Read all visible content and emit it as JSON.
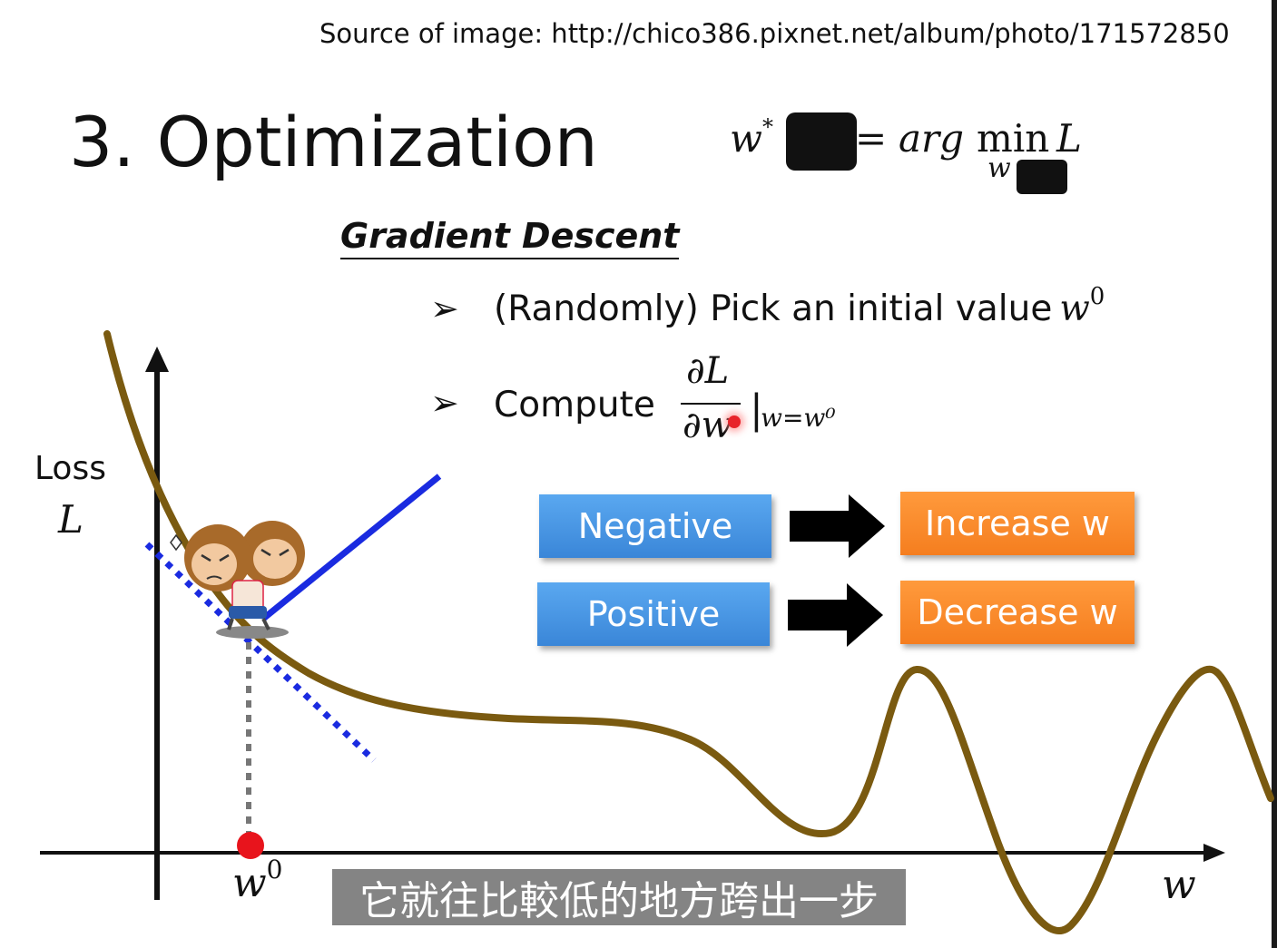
{
  "source": "Source of image: http://chico386.pixnet.net/album/photo/171572850",
  "title": "3. Optimization",
  "formula": {
    "w": "w",
    "star": "*",
    "equals": "=",
    "arg": "arg",
    "min": "min",
    "L": "L",
    "sub": "w"
  },
  "section_heading": "Gradient Descent",
  "bullets": {
    "b1_text": "(Randomly) Pick an initial value",
    "b1_var": "w",
    "b1_sup": "0",
    "b2_text": "Compute"
  },
  "derivative": {
    "numerator": "∂L",
    "denominator": "∂w",
    "bar": "|",
    "evaluation": "w=w⁰"
  },
  "rules": {
    "negative": "Negative",
    "positive": "Positive",
    "increase": "Increase w",
    "decrease": "Decrease w"
  },
  "axes": {
    "y_label_line1": "Loss",
    "y_label_line2": "L",
    "x_label": "w",
    "w0_var": "w",
    "w0_sup": "0"
  },
  "subtitle": "它就往比較低的地方跨出一步",
  "colors": {
    "curve": "#7a5a10",
    "tangent": "#1a2be0",
    "arrow_line": "#1a2be0",
    "point": "#e8141c",
    "button_blue": "#3a86d8",
    "button_orange": "#f57e1f"
  },
  "icons": {
    "bullet": "arrowhead-bullet-icon",
    "rule_arrow": "right-arrow-icon",
    "mascot": "monkey-mascot-icon"
  }
}
